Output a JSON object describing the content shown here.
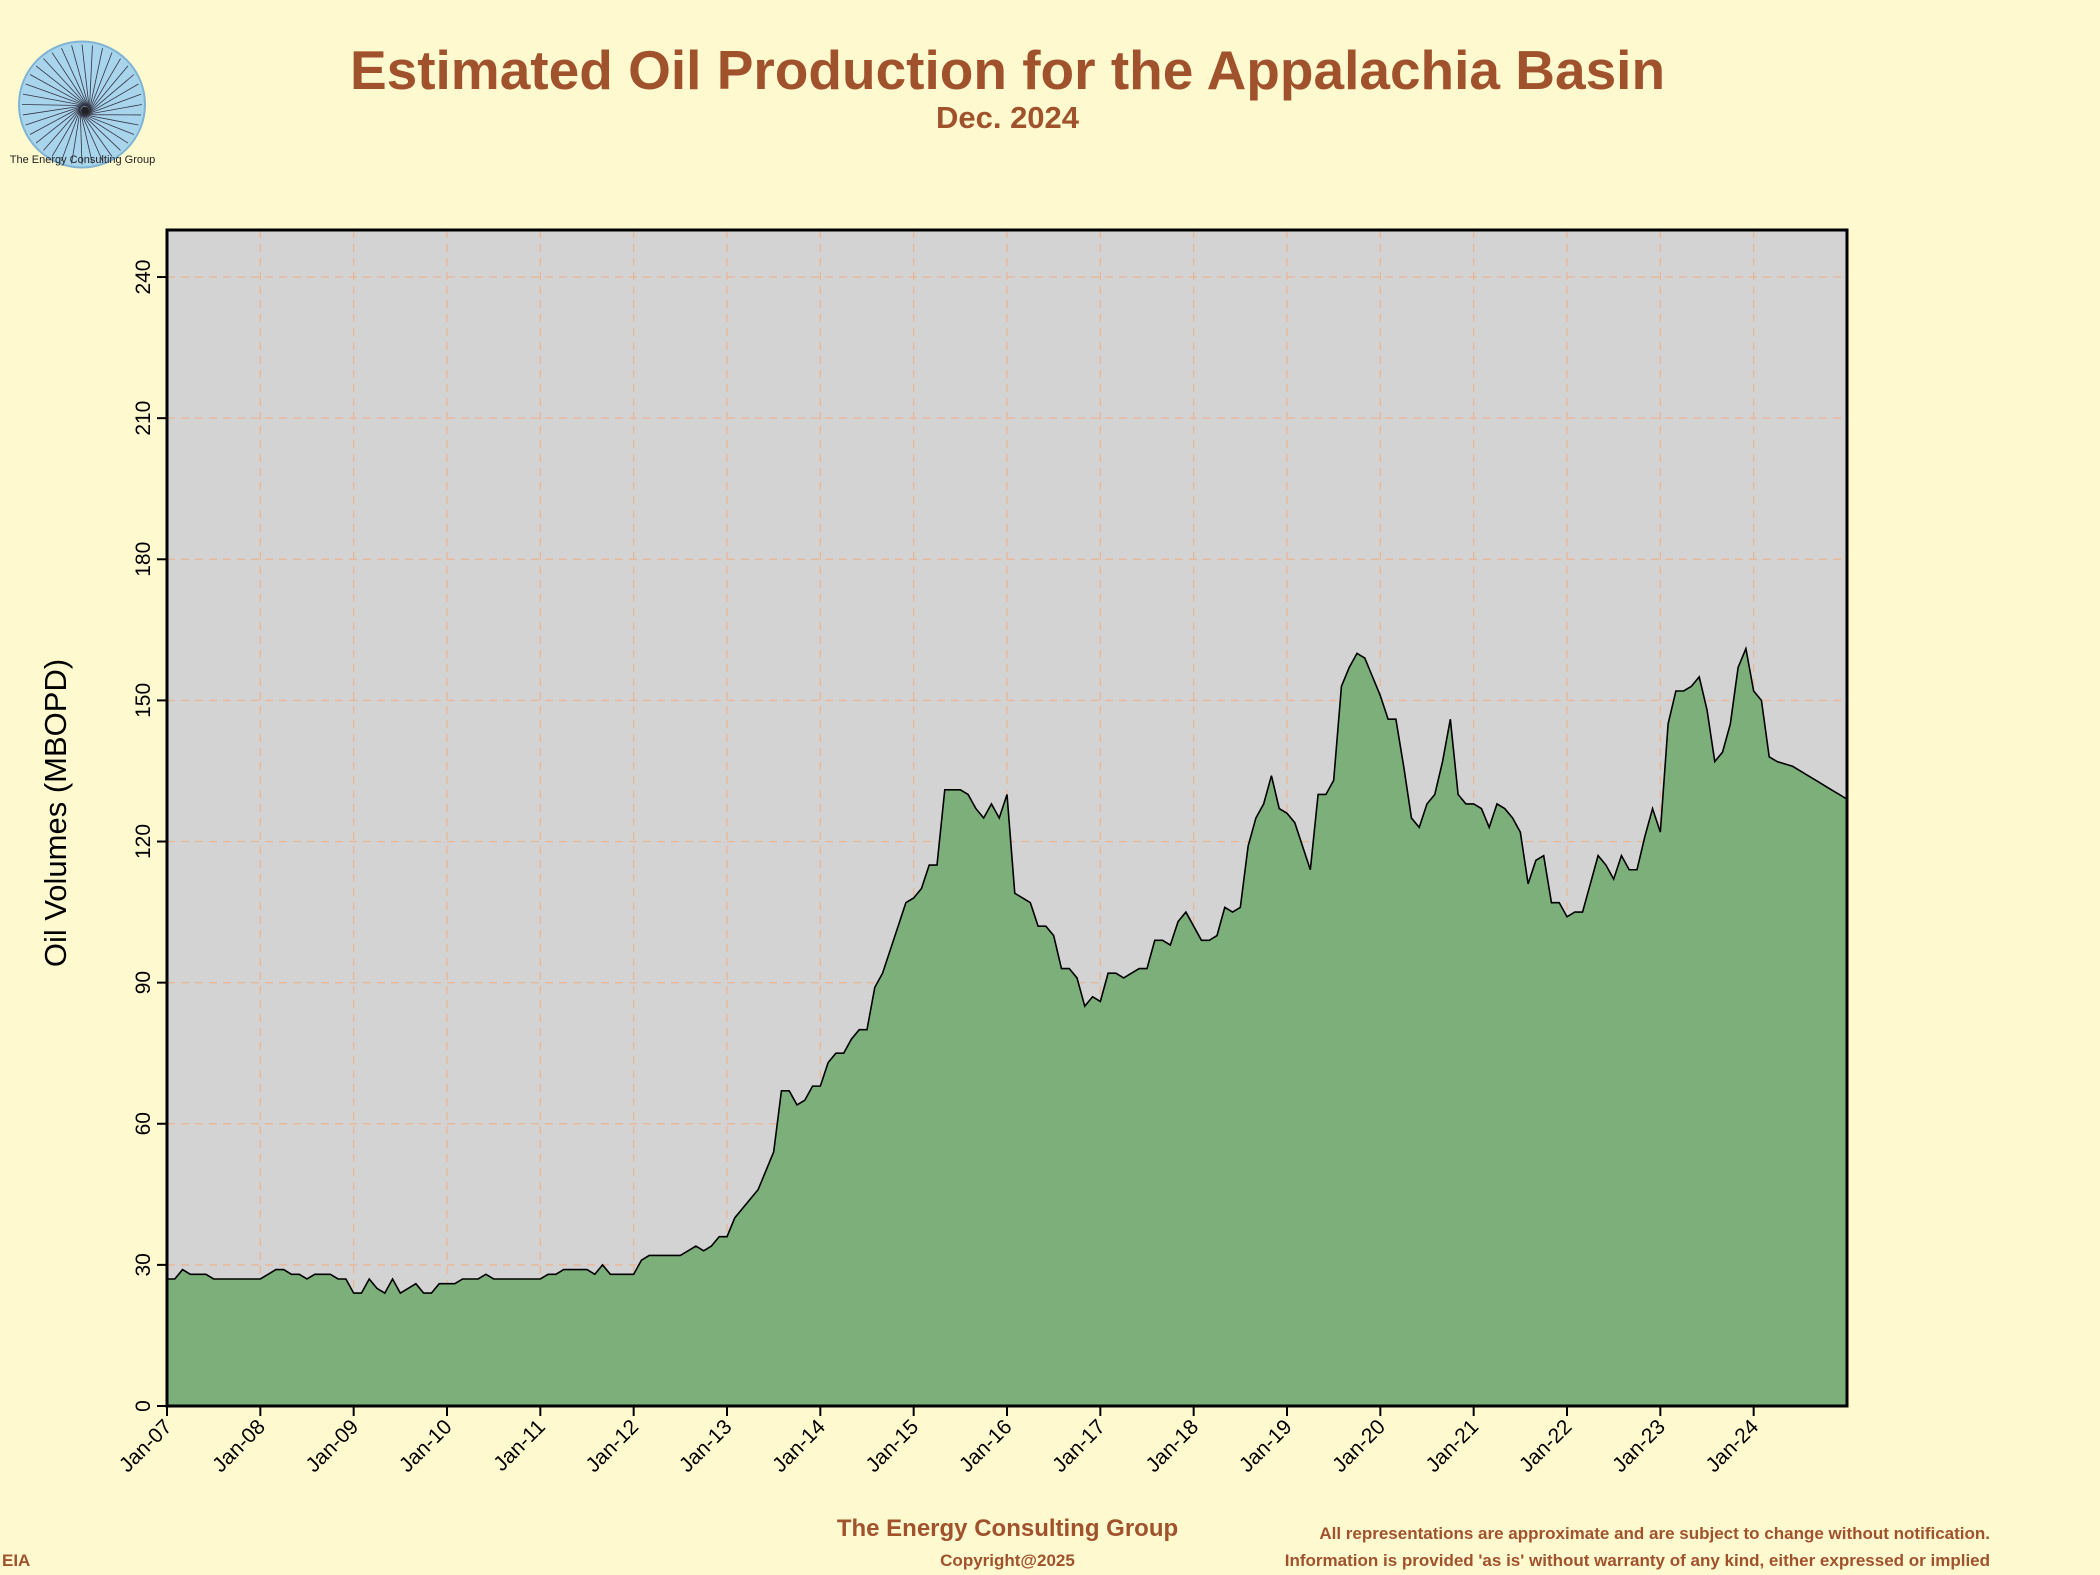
{
  "header": {
    "title": "Estimated Oil Production for the Appalachia Basin",
    "subtitle": "Dec. 2024",
    "logo_text": "The Energy Consulting Group"
  },
  "footer": {
    "brand": "The Energy Consulting Group",
    "copyright": "Copyright@2025",
    "source": "EIA",
    "disclaimer_1": "All representations are approximate and are subject to change without notification.",
    "disclaimer_2": "Information is provided 'as is' without warranty of any kind, either expressed or implied"
  },
  "colors": {
    "background": "#fff9cf",
    "plot_background": "#d3d3d3",
    "area_fill": "#7daf7b",
    "line": "#000000",
    "grid": "#e8b89a",
    "title": "#a0522d"
  },
  "chart_data": {
    "type": "area",
    "title": "Estimated Oil Production for the Appalachia Basin",
    "subtitle": "Dec. 2024",
    "ylabel": "Oil Volumes (MBOPD)",
    "xlabel": "",
    "ylim": [
      0,
      250
    ],
    "yticks": [
      0,
      30,
      60,
      90,
      120,
      150,
      180,
      210,
      240
    ],
    "x_start": "Jan-07",
    "x_end": "Dec-24",
    "xtick_labels": [
      "Jan-07",
      "Jan-08",
      "Jan-09",
      "Jan-10",
      "Jan-11",
      "Jan-12",
      "Jan-13",
      "Jan-14",
      "Jan-15",
      "Jan-16",
      "Jan-17",
      "Jan-18",
      "Jan-19",
      "Jan-20",
      "Jan-21",
      "Jan-22",
      "Jan-23",
      "Jan-24"
    ],
    "grid": true,
    "series": [
      {
        "values": [
          27,
          27,
          29,
          28,
          28,
          28,
          27,
          27,
          27,
          27,
          27,
          27,
          27,
          28,
          29,
          29,
          28,
          28,
          27,
          28,
          28,
          28,
          27,
          27,
          24,
          24,
          27,
          25,
          24,
          27,
          24,
          25,
          26,
          24,
          24,
          26,
          26,
          26,
          27,
          27,
          27,
          28,
          27,
          27,
          27,
          27,
          27,
          27,
          27,
          28,
          28,
          29,
          29,
          29,
          29,
          28,
          30,
          28,
          28,
          28,
          28,
          31,
          32,
          32,
          32,
          32,
          32,
          33,
          34,
          33,
          34,
          36,
          36,
          40,
          42,
          44,
          46,
          50,
          54,
          67,
          67,
          64,
          65,
          68,
          68,
          73,
          75,
          75,
          78,
          80,
          80,
          89,
          92,
          97,
          102,
          107,
          108,
          110,
          115,
          115,
          131,
          131,
          131,
          130,
          127,
          125,
          128,
          125,
          130,
          109,
          108,
          107,
          102,
          102,
          100,
          93,
          93,
          91,
          85,
          87,
          86,
          92,
          92,
          91,
          92,
          93,
          93,
          99,
          99,
          98,
          103,
          105,
          102,
          99,
          99,
          100,
          106,
          105,
          106,
          119,
          125,
          128,
          134,
          127,
          126,
          124,
          119,
          114,
          130,
          130,
          133,
          153,
          157,
          160,
          159,
          155,
          151,
          146,
          146,
          136,
          125,
          123,
          128,
          130,
          137,
          146,
          130,
          128,
          128,
          127,
          123,
          128,
          127,
          125,
          122,
          111,
          116,
          117,
          107,
          107,
          104,
          105,
          105,
          111,
          117,
          115,
          112,
          117,
          114,
          114,
          121,
          127,
          122,
          145,
          152,
          152,
          153,
          155,
          148,
          137,
          139,
          145,
          157,
          161,
          152,
          150,
          138,
          137,
          136.5,
          136,
          135,
          134,
          133,
          132,
          131,
          130,
          129
        ]
      }
    ]
  }
}
